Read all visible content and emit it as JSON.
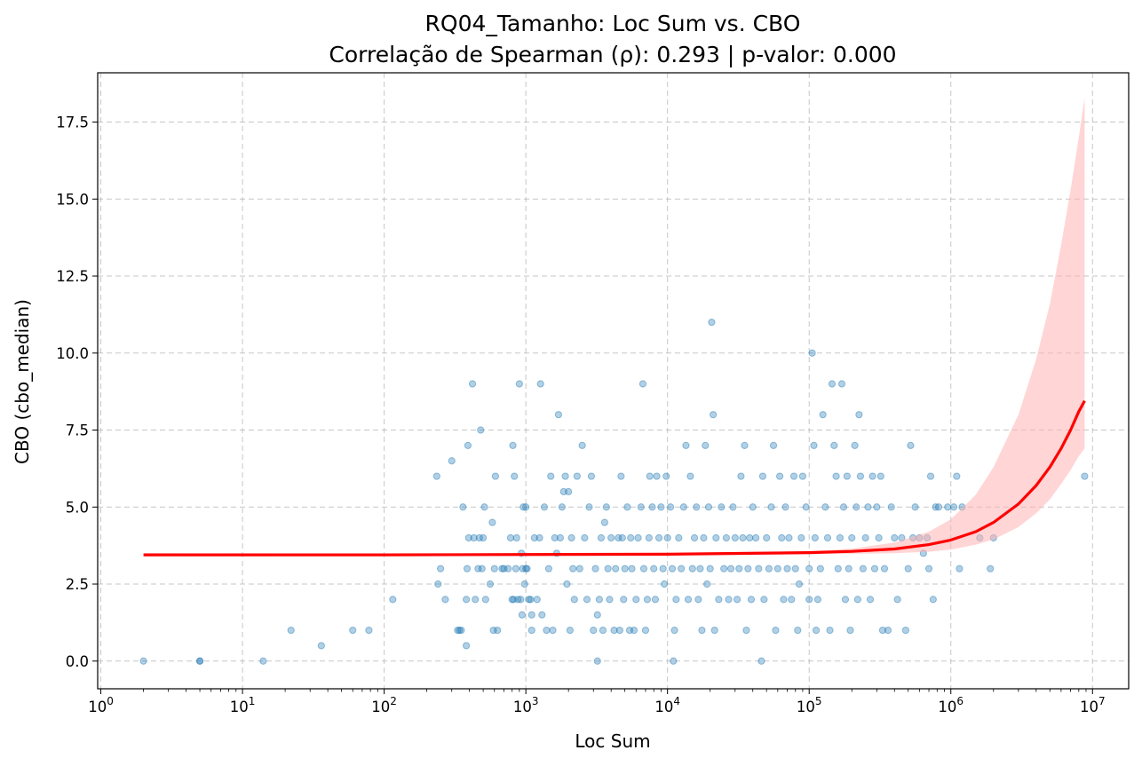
{
  "chart_data": {
    "type": "scatter",
    "title": "RQ04_Tamanho: Loc Sum vs. CBO",
    "subtitle": "Correlação de Spearman (ρ): 0.293 | p-valor: 0.000",
    "xlabel": "Loc Sum",
    "ylabel": "CBO (cbo_median)",
    "x_scale": "log",
    "xlim": [
      0.95,
      18000000
    ],
    "ylim": [
      -0.9,
      19.1
    ],
    "grid": true,
    "x_ticks": [
      {
        "value": 1,
        "base": "10",
        "exp": "0"
      },
      {
        "value": 10,
        "base": "10",
        "exp": "1"
      },
      {
        "value": 100,
        "base": "10",
        "exp": "2"
      },
      {
        "value": 1000,
        "base": "10",
        "exp": "3"
      },
      {
        "value": 10000,
        "base": "10",
        "exp": "4"
      },
      {
        "value": 100000,
        "base": "10",
        "exp": "5"
      },
      {
        "value": 1000000,
        "base": "10",
        "exp": "6"
      },
      {
        "value": 10000000,
        "base": "10",
        "exp": "7"
      }
    ],
    "y_ticks": [
      {
        "value": 0,
        "label": "0.0"
      },
      {
        "value": 2.5,
        "label": "2.5"
      },
      {
        "value": 5,
        "label": "5.0"
      },
      {
        "value": 7.5,
        "label": "7.5"
      },
      {
        "value": 10,
        "label": "10.0"
      },
      {
        "value": 12.5,
        "label": "12.5"
      },
      {
        "value": 15,
        "label": "15.0"
      },
      {
        "value": 17.5,
        "label": "17.5"
      }
    ],
    "colors": {
      "points": "#1f77b4",
      "trend": "#ff0000",
      "band": "#ffb3b3",
      "grid": "#b0b0b0"
    },
    "points": [
      [
        2,
        0
      ],
      [
        5,
        0
      ],
      [
        5,
        0
      ],
      [
        14,
        0
      ],
      [
        22,
        1
      ],
      [
        36,
        0.5
      ],
      [
        60,
        1
      ],
      [
        78,
        1
      ],
      [
        115,
        2
      ],
      [
        235,
        6
      ],
      [
        240,
        2.5
      ],
      [
        250,
        3
      ],
      [
        270,
        2
      ],
      [
        300,
        6.5
      ],
      [
        330,
        1
      ],
      [
        340,
        1
      ],
      [
        350,
        1
      ],
      [
        360,
        5
      ],
      [
        380,
        0.5
      ],
      [
        380,
        2
      ],
      [
        385,
        3
      ],
      [
        390,
        7
      ],
      [
        395,
        4
      ],
      [
        420,
        9
      ],
      [
        430,
        4
      ],
      [
        440,
        2
      ],
      [
        460,
        3
      ],
      [
        470,
        4
      ],
      [
        480,
        7.5
      ],
      [
        490,
        3
      ],
      [
        500,
        4
      ],
      [
        510,
        5
      ],
      [
        520,
        2
      ],
      [
        560,
        2.5
      ],
      [
        580,
        4.5
      ],
      [
        590,
        1
      ],
      [
        600,
        3
      ],
      [
        610,
        6
      ],
      [
        630,
        1
      ],
      [
        680,
        3
      ],
      [
        700,
        3
      ],
      [
        750,
        3
      ],
      [
        780,
        4
      ],
      [
        800,
        2
      ],
      [
        810,
        7
      ],
      [
        820,
        2
      ],
      [
        830,
        6
      ],
      [
        850,
        3
      ],
      [
        860,
        4
      ],
      [
        880,
        2
      ],
      [
        900,
        9
      ],
      [
        920,
        2
      ],
      [
        930,
        3.5
      ],
      [
        940,
        1.5
      ],
      [
        950,
        3
      ],
      [
        960,
        5
      ],
      [
        980,
        2.5
      ],
      [
        1000,
        5
      ],
      [
        1000,
        3
      ],
      [
        1020,
        3
      ],
      [
        1050,
        2
      ],
      [
        1080,
        2
      ],
      [
        1100,
        1.5
      ],
      [
        1100,
        1
      ],
      [
        1150,
        4
      ],
      [
        1200,
        2
      ],
      [
        1250,
        4
      ],
      [
        1270,
        9
      ],
      [
        1300,
        1.5
      ],
      [
        1350,
        5
      ],
      [
        1400,
        1
      ],
      [
        1450,
        3
      ],
      [
        1500,
        6
      ],
      [
        1550,
        1
      ],
      [
        1600,
        4
      ],
      [
        1650,
        3.5
      ],
      [
        1700,
        8
      ],
      [
        1750,
        4
      ],
      [
        1800,
        5
      ],
      [
        1850,
        5.5
      ],
      [
        1900,
        6
      ],
      [
        1950,
        2.5
      ],
      [
        2000,
        5.5
      ],
      [
        2050,
        1
      ],
      [
        2100,
        4
      ],
      [
        2150,
        3
      ],
      [
        2200,
        2
      ],
      [
        2300,
        6
      ],
      [
        2400,
        3
      ],
      [
        2500,
        7
      ],
      [
        2600,
        4
      ],
      [
        2700,
        2
      ],
      [
        2800,
        5
      ],
      [
        2900,
        6
      ],
      [
        3000,
        1
      ],
      [
        3100,
        3
      ],
      [
        3200,
        1.5
      ],
      [
        3200,
        0
      ],
      [
        3300,
        2
      ],
      [
        3400,
        4
      ],
      [
        3500,
        1
      ],
      [
        3600,
        4.5
      ],
      [
        3700,
        5
      ],
      [
        3800,
        3
      ],
      [
        3900,
        2
      ],
      [
        4000,
        4
      ],
      [
        4200,
        1
      ],
      [
        4300,
        3
      ],
      [
        4500,
        4
      ],
      [
        4600,
        1
      ],
      [
        4700,
        6
      ],
      [
        4800,
        4
      ],
      [
        4900,
        2
      ],
      [
        5000,
        3
      ],
      [
        5200,
        5
      ],
      [
        5400,
        1
      ],
      [
        5500,
        4
      ],
      [
        5600,
        3
      ],
      [
        5800,
        1
      ],
      [
        6000,
        2
      ],
      [
        6200,
        4
      ],
      [
        6500,
        5
      ],
      [
        6700,
        9
      ],
      [
        6800,
        3
      ],
      [
        7000,
        1
      ],
      [
        7200,
        2
      ],
      [
        7400,
        4
      ],
      [
        7500,
        6
      ],
      [
        7800,
        5
      ],
      [
        8000,
        3
      ],
      [
        8200,
        2
      ],
      [
        8400,
        6
      ],
      [
        8700,
        4
      ],
      [
        9000,
        5
      ],
      [
        9300,
        3
      ],
      [
        9500,
        2.5
      ],
      [
        9800,
        6
      ],
      [
        10000,
        4
      ],
      [
        10500,
        5
      ],
      [
        10800,
        3
      ],
      [
        11000,
        0
      ],
      [
        11200,
        1
      ],
      [
        11500,
        2
      ],
      [
        12000,
        4
      ],
      [
        12500,
        3
      ],
      [
        13000,
        5
      ],
      [
        13500,
        7
      ],
      [
        14000,
        2
      ],
      [
        14500,
        6
      ],
      [
        15000,
        3
      ],
      [
        15500,
        4
      ],
      [
        16000,
        5
      ],
      [
        16500,
        2
      ],
      [
        17000,
        3
      ],
      [
        17500,
        1
      ],
      [
        18000,
        4
      ],
      [
        18500,
        7
      ],
      [
        19000,
        2.5
      ],
      [
        19500,
        5
      ],
      [
        20000,
        3
      ],
      [
        20500,
        11
      ],
      [
        21000,
        8
      ],
      [
        21500,
        1
      ],
      [
        22000,
        4
      ],
      [
        23000,
        2
      ],
      [
        24000,
        5
      ],
      [
        25000,
        3
      ],
      [
        26000,
        4
      ],
      [
        27000,
        2
      ],
      [
        28000,
        3
      ],
      [
        29000,
        5
      ],
      [
        30000,
        4
      ],
      [
        31000,
        2
      ],
      [
        32000,
        3
      ],
      [
        33000,
        6
      ],
      [
        34000,
        4
      ],
      [
        35000,
        7
      ],
      [
        36000,
        1
      ],
      [
        37000,
        3
      ],
      [
        38000,
        4
      ],
      [
        39000,
        2
      ],
      [
        40000,
        5
      ],
      [
        42000,
        4
      ],
      [
        44000,
        3
      ],
      [
        46000,
        0
      ],
      [
        47000,
        6
      ],
      [
        48000,
        2
      ],
      [
        50000,
        4
      ],
      [
        52000,
        3
      ],
      [
        54000,
        5
      ],
      [
        56000,
        7
      ],
      [
        58000,
        1
      ],
      [
        60000,
        3
      ],
      [
        62000,
        6
      ],
      [
        64000,
        4
      ],
      [
        66000,
        2
      ],
      [
        68000,
        5
      ],
      [
        70000,
        3
      ],
      [
        72000,
        4
      ],
      [
        75000,
        2
      ],
      [
        78000,
        6
      ],
      [
        80000,
        3
      ],
      [
        83000,
        1
      ],
      [
        85000,
        2.5
      ],
      [
        88000,
        4
      ],
      [
        90000,
        6
      ],
      [
        95000,
        5
      ],
      [
        100000,
        3
      ],
      [
        100000,
        2
      ],
      [
        105000,
        10
      ],
      [
        108000,
        7
      ],
      [
        110000,
        4
      ],
      [
        112000,
        1
      ],
      [
        115000,
        2
      ],
      [
        120000,
        3
      ],
      [
        125000,
        8
      ],
      [
        130000,
        5
      ],
      [
        135000,
        4
      ],
      [
        140000,
        1
      ],
      [
        145000,
        9
      ],
      [
        150000,
        7
      ],
      [
        155000,
        6
      ],
      [
        160000,
        3
      ],
      [
        165000,
        4
      ],
      [
        170000,
        9
      ],
      [
        175000,
        5
      ],
      [
        180000,
        2
      ],
      [
        185000,
        6
      ],
      [
        190000,
        3
      ],
      [
        195000,
        1
      ],
      [
        200000,
        4
      ],
      [
        210000,
        7
      ],
      [
        215000,
        5
      ],
      [
        220000,
        2
      ],
      [
        225000,
        8
      ],
      [
        230000,
        6
      ],
      [
        240000,
        3
      ],
      [
        250000,
        4
      ],
      [
        260000,
        5
      ],
      [
        270000,
        2
      ],
      [
        280000,
        6
      ],
      [
        290000,
        3
      ],
      [
        300000,
        5
      ],
      [
        310000,
        4
      ],
      [
        320000,
        6
      ],
      [
        330000,
        1
      ],
      [
        340000,
        3
      ],
      [
        360000,
        1
      ],
      [
        380000,
        5
      ],
      [
        400000,
        4
      ],
      [
        420000,
        2
      ],
      [
        450000,
        4
      ],
      [
        480000,
        1
      ],
      [
        500000,
        3
      ],
      [
        520000,
        7
      ],
      [
        540000,
        4
      ],
      [
        560000,
        5
      ],
      [
        600000,
        4
      ],
      [
        640000,
        3.5
      ],
      [
        680000,
        4
      ],
      [
        700000,
        3
      ],
      [
        720000,
        6
      ],
      [
        750000,
        2
      ],
      [
        780000,
        5
      ],
      [
        820000,
        5
      ],
      [
        950000,
        5
      ],
      [
        1050000,
        5
      ],
      [
        1100000,
        6
      ],
      [
        1150000,
        3
      ],
      [
        1200000,
        5
      ],
      [
        1600000,
        4
      ],
      [
        1900000,
        3
      ],
      [
        2000000,
        4
      ],
      [
        8800000,
        6
      ]
    ],
    "trend_line": [
      [
        2,
        3.45
      ],
      [
        100,
        3.45
      ],
      [
        10000,
        3.47
      ],
      [
        100000,
        3.52
      ],
      [
        200000,
        3.56
      ],
      [
        400000,
        3.64
      ],
      [
        700000,
        3.78
      ],
      [
        1000000,
        3.93
      ],
      [
        1500000,
        4.2
      ],
      [
        2000000,
        4.5
      ],
      [
        3000000,
        5.1
      ],
      [
        4000000,
        5.7
      ],
      [
        5000000,
        6.3
      ],
      [
        6000000,
        6.9
      ],
      [
        7000000,
        7.5
      ],
      [
        8000000,
        8.1
      ],
      [
        8800000,
        8.45
      ]
    ],
    "confidence_band_upper": [
      [
        2,
        3.5
      ],
      [
        100,
        3.49
      ],
      [
        10000,
        3.5
      ],
      [
        100000,
        3.57
      ],
      [
        200000,
        3.65
      ],
      [
        400000,
        3.85
      ],
      [
        700000,
        4.2
      ],
      [
        1000000,
        4.6
      ],
      [
        1500000,
        5.4
      ],
      [
        2000000,
        6.3
      ],
      [
        3000000,
        8.0
      ],
      [
        4000000,
        9.8
      ],
      [
        5000000,
        11.6
      ],
      [
        6000000,
        13.5
      ],
      [
        7000000,
        15.3
      ],
      [
        8000000,
        17.0
      ],
      [
        8800000,
        18.3
      ]
    ],
    "confidence_band_lower": [
      [
        2,
        3.4
      ],
      [
        100,
        3.41
      ],
      [
        10000,
        3.44
      ],
      [
        100000,
        3.47
      ],
      [
        200000,
        3.48
      ],
      [
        400000,
        3.5
      ],
      [
        700000,
        3.55
      ],
      [
        1000000,
        3.62
      ],
      [
        1500000,
        3.78
      ],
      [
        2000000,
        3.95
      ],
      [
        3000000,
        4.35
      ],
      [
        4000000,
        4.8
      ],
      [
        5000000,
        5.25
      ],
      [
        6000000,
        5.75
      ],
      [
        7000000,
        6.2
      ],
      [
        8000000,
        6.65
      ],
      [
        8800000,
        6.9
      ]
    ]
  }
}
